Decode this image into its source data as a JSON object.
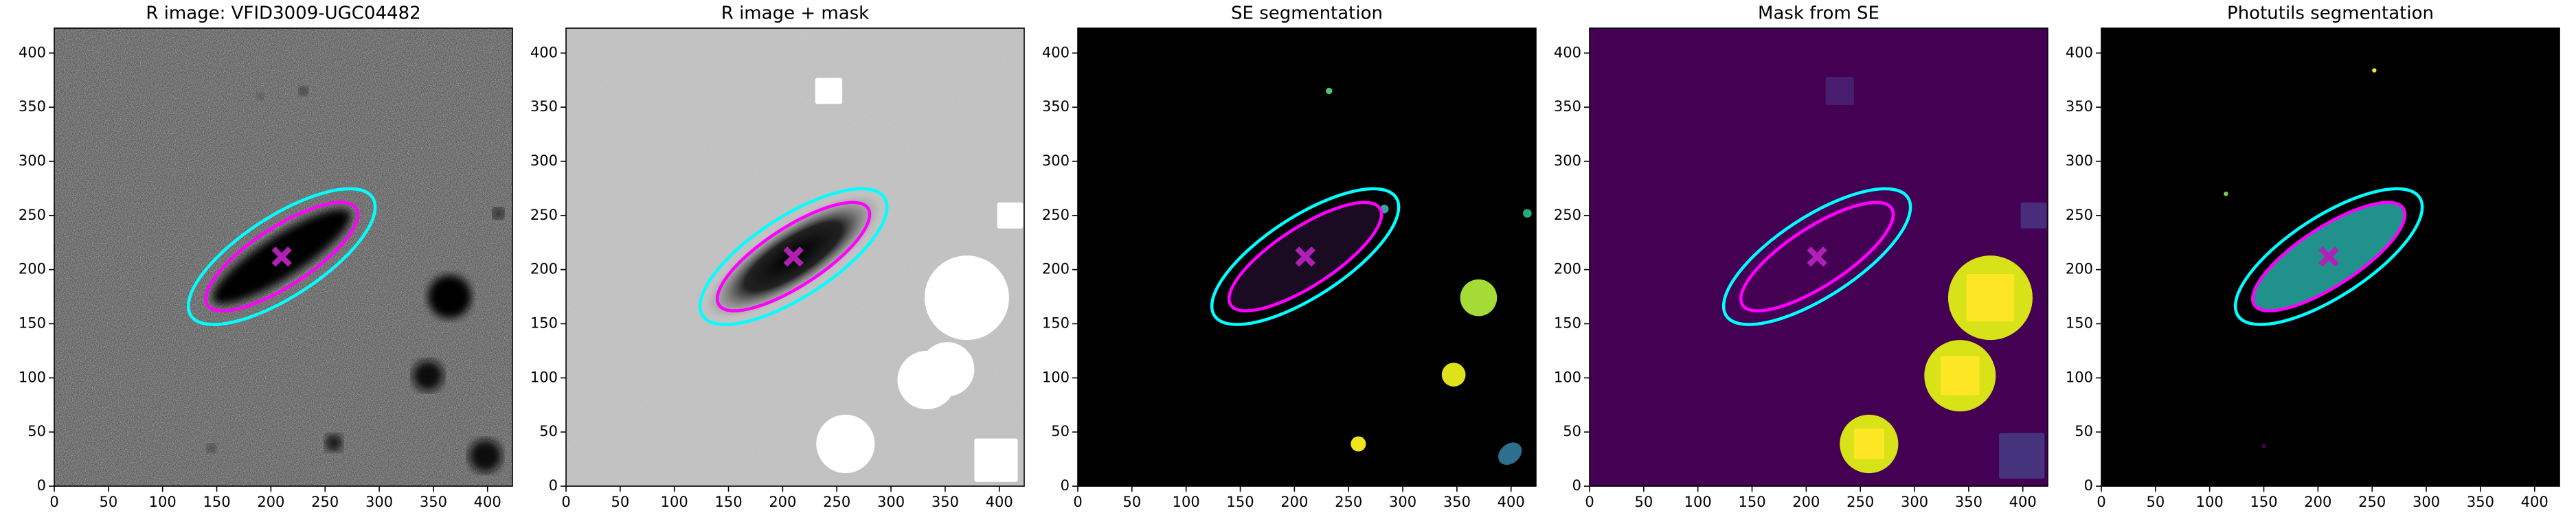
{
  "chart_data": [
    {
      "type": "image",
      "title": "R image: VFID3009-UGC04482",
      "background": "#5c5c5c",
      "noise": true,
      "xlim": [
        0,
        423
      ],
      "ylim": [
        0,
        423
      ],
      "xticks": [
        0,
        50,
        100,
        150,
        200,
        250,
        300,
        350,
        400
      ],
      "yticks": [
        0,
        50,
        100,
        150,
        200,
        250,
        300,
        350,
        400
      ],
      "ellipses": [
        {
          "color": "#00ffff",
          "x": 210,
          "y": 212,
          "a": 100,
          "b": 37,
          "angle": 33
        },
        {
          "color": "#ff00ff",
          "x": 210,
          "y": 212,
          "a": 82,
          "b": 27,
          "angle": 33
        }
      ],
      "marker": {
        "x": 210,
        "y": 212,
        "color": "#b21fb8"
      }
    },
    {
      "type": "image",
      "title": "R image + mask",
      "background": "#c4c4c4",
      "noise": true,
      "xlim": [
        0,
        423
      ],
      "ylim": [
        0,
        423
      ],
      "xticks": [
        0,
        50,
        100,
        150,
        200,
        250,
        300,
        350,
        400
      ],
      "yticks": [
        0,
        50,
        100,
        150,
        200,
        250,
        300,
        350,
        400
      ],
      "ellipses": [
        {
          "color": "#00ffff",
          "x": 210,
          "y": 212,
          "a": 100,
          "b": 37,
          "angle": 33
        },
        {
          "color": "#ff00ff",
          "x": 210,
          "y": 212,
          "a": 82,
          "b": 27,
          "angle": 33
        }
      ],
      "marker": {
        "x": 210,
        "y": 212,
        "color": "#b21fb8"
      }
    },
    {
      "type": "image",
      "title": "SE segmentation",
      "background": "#000000",
      "noise": false,
      "xlim": [
        0,
        423
      ],
      "ylim": [
        0,
        423
      ],
      "xticks": [
        0,
        50,
        100,
        150,
        200,
        250,
        300,
        350,
        400
      ],
      "yticks": [
        0,
        50,
        100,
        150,
        200,
        250,
        300,
        350,
        400
      ],
      "ellipses": [
        {
          "color": "#00ffff",
          "x": 210,
          "y": 212,
          "a": 100,
          "b": 37,
          "angle": 33
        },
        {
          "color": "#ff00ff",
          "x": 210,
          "y": 212,
          "a": 82,
          "b": 27,
          "angle": 33
        }
      ],
      "marker": {
        "x": 210,
        "y": 212,
        "color": "#b21fb8"
      }
    },
    {
      "type": "image",
      "title": "Mask from SE",
      "background": "#440154",
      "noise": false,
      "xlim": [
        0,
        423
      ],
      "ylim": [
        0,
        423
      ],
      "xticks": [
        0,
        50,
        100,
        150,
        200,
        250,
        300,
        350,
        400
      ],
      "yticks": [
        0,
        50,
        100,
        150,
        200,
        250,
        300,
        350,
        400
      ],
      "ellipses": [
        {
          "color": "#00ffff",
          "x": 210,
          "y": 212,
          "a": 100,
          "b": 37,
          "angle": 33
        },
        {
          "color": "#ff00ff",
          "x": 210,
          "y": 212,
          "a": 82,
          "b": 27,
          "angle": 33
        }
      ],
      "marker": {
        "x": 210,
        "y": 212,
        "color": "#b21fb8"
      }
    },
    {
      "type": "image",
      "title": "Photutils segmentation",
      "background": "#000000",
      "noise": false,
      "xlim": [
        0,
        423
      ],
      "ylim": [
        0,
        423
      ],
      "xticks": [
        0,
        50,
        100,
        150,
        200,
        250,
        300,
        350,
        400
      ],
      "yticks": [
        0,
        50,
        100,
        150,
        200,
        250,
        300,
        350,
        400
      ],
      "ellipses": [
        {
          "color": "#00ffff",
          "x": 210,
          "y": 212,
          "a": 100,
          "b": 37,
          "angle": 33
        },
        {
          "color": "#ff00ff",
          "x": 210,
          "y": 212,
          "a": 82,
          "b": 27,
          "angle": 33
        }
      ],
      "marker": {
        "x": 210,
        "y": 212,
        "color": "#b21fb8"
      }
    }
  ]
}
